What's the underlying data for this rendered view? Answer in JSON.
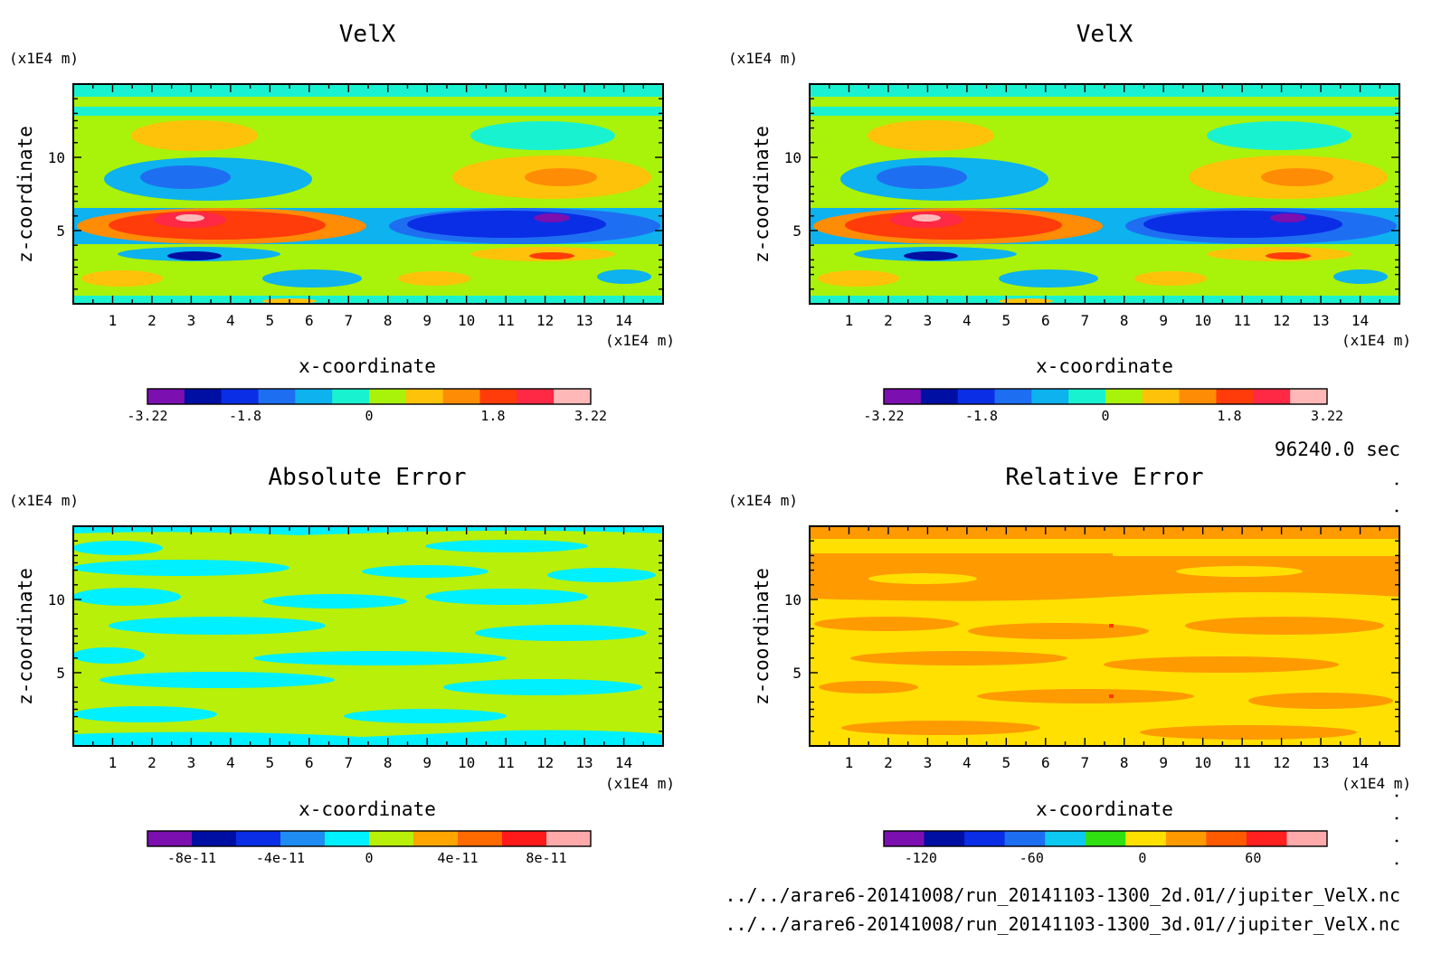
{
  "time_label": "96240.0 sec",
  "file_paths": [
    "../../arare6-20141008/run_20141103-1300_2d.01//jupiter_VelX.nc",
    "../../arare6-20141008/run_20141103-1300_3d.01//jupiter_VelX.nc"
  ],
  "chart_data": [
    {
      "type": "heatmap",
      "title": "VelX",
      "xlabel": "x-coordinate",
      "ylabel": "z-coordinate",
      "x_unit": "(x1E4 m)",
      "y_unit": "(x1E4 m)",
      "xlim": [
        0,
        15
      ],
      "ylim": [
        0,
        15
      ],
      "x_ticks": [
        "1",
        "2",
        "3",
        "4",
        "5",
        "6",
        "7",
        "8",
        "9",
        "10",
        "11",
        "12",
        "13",
        "14"
      ],
      "y_ticks": [
        "5",
        "10"
      ],
      "colorbar_labels": [
        "-3.22",
        "-1.8",
        "0",
        "1.8",
        "3.22"
      ],
      "colorbar_colors": [
        "#7b0fb0",
        "#000fa3",
        "#0a2ee6",
        "#1e6ef2",
        "#0db2ee",
        "#19f2d0",
        "#a9f20a",
        "#ffc20a",
        "#ff8c05",
        "#ff3c0a",
        "#ff2845",
        "#ffb8b8"
      ]
    },
    {
      "type": "heatmap",
      "title": "VelX",
      "xlabel": "x-coordinate",
      "ylabel": "z-coordinate",
      "x_unit": "(x1E4 m)",
      "y_unit": "(x1E4 m)",
      "xlim": [
        0,
        15
      ],
      "ylim": [
        0,
        15
      ],
      "x_ticks": [
        "1",
        "2",
        "3",
        "4",
        "5",
        "6",
        "7",
        "8",
        "9",
        "10",
        "11",
        "12",
        "13",
        "14"
      ],
      "y_ticks": [
        "5",
        "10"
      ],
      "colorbar_labels": [
        "-3.22",
        "-1.8",
        "0",
        "1.8",
        "3.22"
      ],
      "colorbar_colors": [
        "#7b0fb0",
        "#000fa3",
        "#0a2ee6",
        "#1e6ef2",
        "#0db2ee",
        "#19f2d0",
        "#a9f20a",
        "#ffc20a",
        "#ff8c05",
        "#ff3c0a",
        "#ff2845",
        "#ffb8b8"
      ]
    },
    {
      "type": "heatmap",
      "title": "Absolute Error",
      "xlabel": "x-coordinate",
      "ylabel": "z-coordinate",
      "x_unit": "(x1E4 m)",
      "y_unit": "(x1E4 m)",
      "xlim": [
        0,
        15
      ],
      "ylim": [
        0,
        15
      ],
      "x_ticks": [
        "1",
        "2",
        "3",
        "4",
        "5",
        "6",
        "7",
        "8",
        "9",
        "10",
        "11",
        "12",
        "13",
        "14"
      ],
      "y_ticks": [
        "5",
        "10"
      ],
      "colorbar_labels": [
        "-8e-11",
        "-4e-11",
        "0",
        "4e-11",
        "8e-11"
      ],
      "colorbar_colors": [
        "#7b0fb0",
        "#000fa3",
        "#0a2ee6",
        "#1e8cf2",
        "#00f0ff",
        "#b8f00a",
        "#ffa500",
        "#ff6a00",
        "#ff1a1a",
        "#ffaaaa"
      ]
    },
    {
      "type": "heatmap",
      "title": "Relative Error",
      "xlabel": "x-coordinate",
      "ylabel": "z-coordinate",
      "x_unit": "(x1E4 m)",
      "y_unit": "(x1E4 m)",
      "xlim": [
        0,
        15
      ],
      "ylim": [
        0,
        15
      ],
      "x_ticks": [
        "1",
        "2",
        "3",
        "4",
        "5",
        "6",
        "7",
        "8",
        "9",
        "10",
        "11",
        "12",
        "13",
        "14"
      ],
      "y_ticks": [
        "5",
        "10"
      ],
      "colorbar_labels": [
        "-120",
        "-60",
        "0",
        "60"
      ],
      "colorbar_colors": [
        "#7b0fb0",
        "#000fa3",
        "#0a2ee6",
        "#1e6ef2",
        "#0dc8f0",
        "#30e010",
        "#ffe000",
        "#ff9a00",
        "#ff5a00",
        "#ff2020",
        "#ffaaaa"
      ]
    }
  ]
}
